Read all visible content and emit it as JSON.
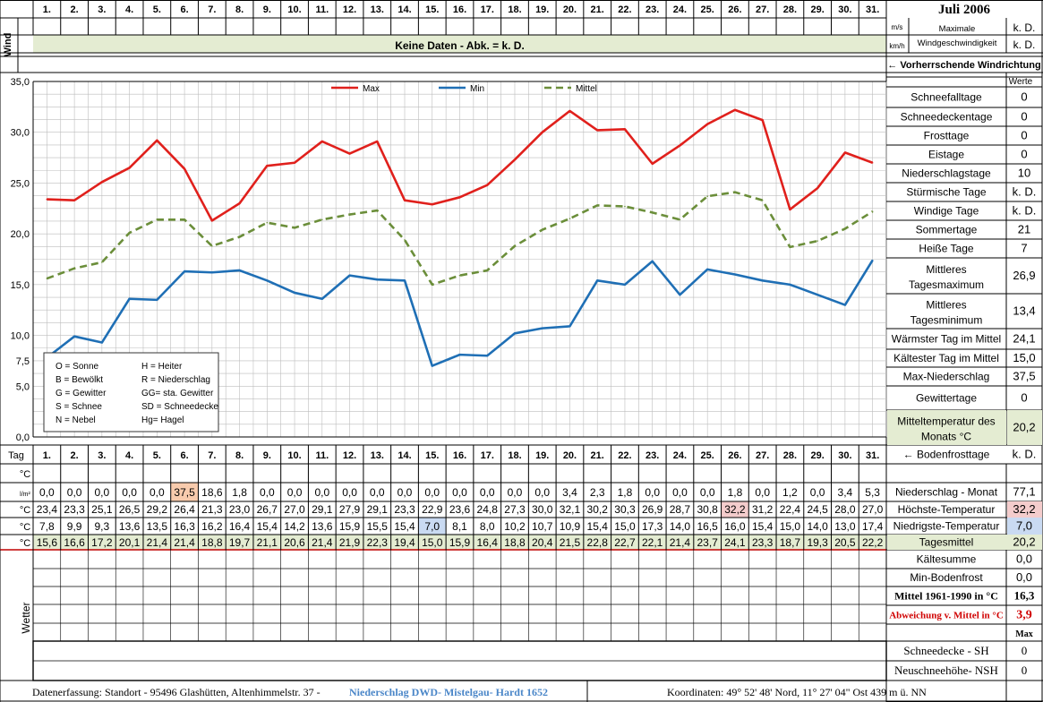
{
  "header": {
    "month_title": "Juli 2006",
    "wind_label": "Wind",
    "wind_unit_ms": "m/s",
    "wind_unit_kmh": "km/h",
    "wind_max_label": "Maximale Windgeschwindigkeit",
    "wind_ms_value": "k. D.",
    "wind_kmh_value": "k. D.",
    "wind_no_data": "Keine Daten - Abk. = k. D.",
    "wind_direction": "← Vorherrschende Windrichtung"
  },
  "days": [
    "1.",
    "2.",
    "3.",
    "4.",
    "5.",
    "6.",
    "7.",
    "8.",
    "9.",
    "10.",
    "11.",
    "12.",
    "13.",
    "14.",
    "15.",
    "16.",
    "17.",
    "18.",
    "19.",
    "20.",
    "21.",
    "22.",
    "23.",
    "24.",
    "25.",
    "26.",
    "27.",
    "28.",
    "29.",
    "30.",
    "31."
  ],
  "chart_data": {
    "type": "line",
    "x": [
      1,
      2,
      3,
      4,
      5,
      6,
      7,
      8,
      9,
      10,
      11,
      12,
      13,
      14,
      15,
      16,
      17,
      18,
      19,
      20,
      21,
      22,
      23,
      24,
      25,
      26,
      27,
      28,
      29,
      30,
      31
    ],
    "ylim": [
      0,
      35
    ],
    "yticks": [
      "0,0",
      "5,0",
      "7,5",
      "10,0",
      "15,0",
      "20,0",
      "25,0",
      "30,0",
      "35,0"
    ],
    "ytick_values": [
      0,
      5,
      7.5,
      10,
      15,
      20,
      25,
      30,
      35
    ],
    "grid": true,
    "series": [
      {
        "name": "Max",
        "color": "#e0201c",
        "dash": false,
        "values": [
          23.4,
          23.3,
          25.1,
          26.5,
          29.2,
          26.4,
          21.3,
          23.0,
          26.7,
          27.0,
          29.1,
          27.9,
          29.1,
          23.3,
          22.9,
          23.6,
          24.8,
          27.3,
          30.0,
          32.1,
          30.2,
          30.3,
          26.9,
          28.7,
          30.8,
          32.2,
          31.2,
          22.4,
          24.5,
          28.0,
          27.0
        ]
      },
      {
        "name": "Min",
        "color": "#1f6fb5",
        "dash": false,
        "values": [
          7.8,
          9.9,
          9.3,
          13.6,
          13.5,
          16.3,
          16.2,
          16.4,
          15.4,
          14.2,
          13.6,
          15.9,
          15.5,
          15.4,
          7.0,
          8.1,
          8.0,
          10.2,
          10.7,
          10.9,
          15.4,
          15.0,
          17.3,
          14.0,
          16.5,
          16.0,
          15.4,
          15.0,
          14.0,
          13.0,
          17.4
        ]
      },
      {
        "name": "Mittel",
        "color": "#6b8e3a",
        "dash": true,
        "values": [
          15.6,
          16.6,
          17.2,
          20.1,
          21.4,
          21.4,
          18.8,
          19.7,
          21.1,
          20.6,
          21.4,
          21.9,
          22.3,
          19.4,
          15.0,
          15.9,
          16.4,
          18.8,
          20.4,
          21.5,
          22.8,
          22.7,
          22.1,
          21.4,
          23.7,
          24.1,
          23.3,
          18.7,
          19.3,
          20.5,
          22.2
        ]
      }
    ]
  },
  "weather_key": [
    [
      "O = Sonne",
      "H = Heiter"
    ],
    [
      "B = Bewölkt",
      "R = Niederschlag"
    ],
    [
      "G = Gewitter",
      "GG= sta. Gewitter"
    ],
    [
      "S = Schnee",
      "SD = Schneedecke"
    ],
    [
      "N = Nebel",
      "Hg= Hagel"
    ]
  ],
  "table": {
    "tag_label": "Tag",
    "row_units": [
      "°C",
      "l/m²",
      "°C",
      "°C",
      "°C"
    ],
    "niederschlag": [
      "0,0",
      "0,0",
      "0,0",
      "0,0",
      "0,0",
      "37,5",
      "18,6",
      "1,8",
      "0,0",
      "0,0",
      "0,0",
      "0,0",
      "0,0",
      "0,0",
      "0,0",
      "0,0",
      "0,0",
      "0,0",
      "0,0",
      "3,4",
      "2,3",
      "1,8",
      "0,0",
      "0,0",
      "0,0",
      "1,8",
      "0,0",
      "1,2",
      "0,0",
      "3,4",
      "5,3"
    ],
    "max": [
      "23,4",
      "23,3",
      "25,1",
      "26,5",
      "29,2",
      "26,4",
      "21,3",
      "23,0",
      "26,7",
      "27,0",
      "29,1",
      "27,9",
      "29,1",
      "23,3",
      "22,9",
      "23,6",
      "24,8",
      "27,3",
      "30,0",
      "32,1",
      "30,2",
      "30,3",
      "26,9",
      "28,7",
      "30,8",
      "32,2",
      "31,2",
      "22,4",
      "24,5",
      "28,0",
      "27,0"
    ],
    "min": [
      "7,8",
      "9,9",
      "9,3",
      "13,6",
      "13,5",
      "16,3",
      "16,2",
      "16,4",
      "15,4",
      "14,2",
      "13,6",
      "15,9",
      "15,5",
      "15,4",
      "7,0",
      "8,1",
      "8,0",
      "10,2",
      "10,7",
      "10,9",
      "15,4",
      "15,0",
      "17,3",
      "14,0",
      "16,5",
      "16,0",
      "15,4",
      "15,0",
      "14,0",
      "13,0",
      "17,4"
    ],
    "mittel": [
      "15,6",
      "16,6",
      "17,2",
      "20,1",
      "21,4",
      "21,4",
      "18,8",
      "19,7",
      "21,1",
      "20,6",
      "21,4",
      "21,9",
      "22,3",
      "19,4",
      "15,0",
      "15,9",
      "16,4",
      "18,8",
      "20,4",
      "21,5",
      "22,8",
      "22,7",
      "22,1",
      "21,4",
      "23,7",
      "24,1",
      "23,3",
      "18,7",
      "19,3",
      "20,5",
      "22,2"
    ],
    "wetter_label": "Wetter"
  },
  "right_panel": {
    "werte_label": "Werte",
    "stats": [
      {
        "label": "Schneefalltage",
        "value": "0"
      },
      {
        "label": "Schneedeckentage",
        "value": "0"
      },
      {
        "label": "Frosttage",
        "value": "0"
      },
      {
        "label": "Eistage",
        "value": "0"
      },
      {
        "label": "Niederschlagstage",
        "value": "10"
      },
      {
        "label": "Stürmische Tage",
        "value": "k. D."
      },
      {
        "label": "Windige Tage",
        "value": "k. D."
      },
      {
        "label": "Sommertage",
        "value": "21"
      },
      {
        "label": "Heiße Tage",
        "value": "7"
      },
      {
        "label": "Mittleres Tagesmaximum",
        "value": "26,9"
      },
      {
        "label": "Mittleres Tagesminimum",
        "value": "13,4"
      },
      {
        "label": "Wärmster Tag im Mittel",
        "value": "24,1"
      },
      {
        "label": "Kältester Tag im Mittel",
        "value": "15,0"
      },
      {
        "label": "Max-Niederschlag",
        "value": "37,5"
      },
      {
        "label": "Gewittertage",
        "value": "0"
      },
      {
        "label": "Mitteltemperatur des Monats °C",
        "value": "20,2"
      }
    ],
    "bodenfrost": {
      "label": "← Bodenfrosttage",
      "value": "k. D."
    },
    "niederschlag_monat": {
      "label": "Niederschlag - Monat",
      "value": "77,1"
    },
    "hoechste": {
      "label": "Höchste-Temperatur",
      "value": "32,2"
    },
    "niedrigste": {
      "label": "Niedrigste-Temperatur",
      "value": "7,0"
    },
    "tagesmittel": {
      "label": "Tagesmittel",
      "value": "20,2"
    },
    "kaeltesumme": {
      "label": "Kältesumme",
      "value": "0,0"
    },
    "min_bodenfrost": {
      "label": "Min-Bodenfrost",
      "value": "0,0"
    },
    "mittel_1961": {
      "label": "Mittel 1961-1990 in °C",
      "value": "16,3"
    },
    "abweichung": {
      "label": "Abweichung v. Mittel in °C",
      "value": "3,9"
    },
    "max_label": "Max",
    "schneedecke": {
      "label": "Schneedecke -   SH",
      "value": "0"
    },
    "neuschnee": {
      "label": "Neuschneehöhe- NSH",
      "value": "0"
    }
  },
  "footer": {
    "left": "Datenerfassung:  Standort -  95496  Glashütten, Altenhimmelstr. 37 -",
    "source": "Niederschlag DWD- Mistelgau- Hardt 1652",
    "coords": "Koordinaten:  49° 52' 48' Nord,   11° 27' 04\" Ost   439 m ü. NN"
  },
  "colors": {
    "max": "#e0201c",
    "min": "#1f6fb5",
    "mittel": "#6b8e3a",
    "highlight_green": "#e4ecd2",
    "highlight_orange": "#f8cbad",
    "highlight_blue": "#c9daf2",
    "highlight_pink": "#f4cccc"
  }
}
